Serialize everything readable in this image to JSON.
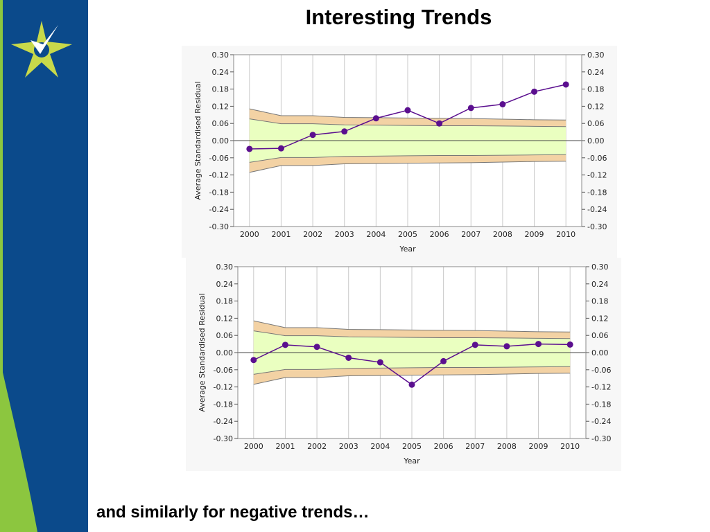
{
  "slide": {
    "title": "Interesting Trends",
    "footer": "and similarly for negative trends…"
  },
  "colors": {
    "sidebar_blue": "#0b4a8b",
    "sidebar_green": "#8cc63f",
    "logo_star": "#c8d94a",
    "logo_check": "#ffffff",
    "band_inner": "#eaffc0",
    "band_outer": "#f3d2a4",
    "band_edge": "#777777",
    "series": "#5b0f8f"
  },
  "chart_data": [
    {
      "type": "line",
      "title": "",
      "xlabel": "Year",
      "ylabel": "Average Standardised Residual",
      "x": [
        2000,
        2001,
        2002,
        2003,
        2004,
        2005,
        2006,
        2007,
        2008,
        2009,
        2010
      ],
      "ylim": [
        -0.3,
        0.3
      ],
      "yticks": [
        "0.30",
        "0.24",
        "0.18",
        "0.12",
        "0.06",
        "0.00",
        "-0.06",
        "-0.12",
        "-0.18",
        "-0.24",
        "-0.30"
      ],
      "secondary_y_axis": true,
      "grid": "vertical",
      "series": [
        {
          "values": [
            -0.029,
            -0.027,
            0.02,
            0.032,
            0.078,
            0.106,
            0.06,
            0.114,
            0.127,
            0.171,
            0.196
          ]
        }
      ],
      "control_band_outer": {
        "upper": [
          0.111,
          0.087,
          0.087,
          0.081,
          0.08,
          0.079,
          0.078,
          0.077,
          0.075,
          0.073,
          0.072
        ],
        "lower": [
          -0.111,
          -0.087,
          -0.087,
          -0.081,
          -0.08,
          -0.079,
          -0.078,
          -0.077,
          -0.075,
          -0.073,
          -0.072
        ]
      },
      "control_band_inner": {
        "upper": [
          0.076,
          0.059,
          0.059,
          0.055,
          0.054,
          0.053,
          0.052,
          0.052,
          0.051,
          0.05,
          0.049
        ],
        "lower": [
          -0.076,
          -0.059,
          -0.059,
          -0.055,
          -0.054,
          -0.053,
          -0.052,
          -0.052,
          -0.051,
          -0.05,
          -0.049
        ]
      }
    },
    {
      "type": "line",
      "title": "",
      "xlabel": "Year",
      "ylabel": "Average Standardised Residual",
      "x": [
        2000,
        2001,
        2002,
        2003,
        2004,
        2005,
        2006,
        2007,
        2008,
        2009,
        2010
      ],
      "ylim": [
        -0.3,
        0.3
      ],
      "yticks": [
        "0.30",
        "0.24",
        "0.18",
        "0.12",
        "0.06",
        "0.00",
        "-0.06",
        "-0.12",
        "-0.18",
        "-0.24",
        "-0.30"
      ],
      "secondary_y_axis": true,
      "grid": "vertical",
      "series": [
        {
          "values": [
            -0.026,
            0.027,
            0.02,
            -0.018,
            -0.034,
            -0.112,
            -0.03,
            0.027,
            0.022,
            0.03,
            0.028
          ]
        }
      ],
      "control_band_outer": {
        "upper": [
          0.111,
          0.087,
          0.087,
          0.081,
          0.08,
          0.079,
          0.078,
          0.077,
          0.075,
          0.073,
          0.072
        ],
        "lower": [
          -0.111,
          -0.087,
          -0.087,
          -0.081,
          -0.08,
          -0.079,
          -0.078,
          -0.077,
          -0.075,
          -0.073,
          -0.072
        ]
      },
      "control_band_inner": {
        "upper": [
          0.076,
          0.059,
          0.059,
          0.055,
          0.054,
          0.053,
          0.052,
          0.052,
          0.051,
          0.05,
          0.049
        ],
        "lower": [
          -0.076,
          -0.059,
          -0.059,
          -0.055,
          -0.054,
          -0.053,
          -0.052,
          -0.052,
          -0.051,
          -0.05,
          -0.049
        ]
      }
    }
  ]
}
